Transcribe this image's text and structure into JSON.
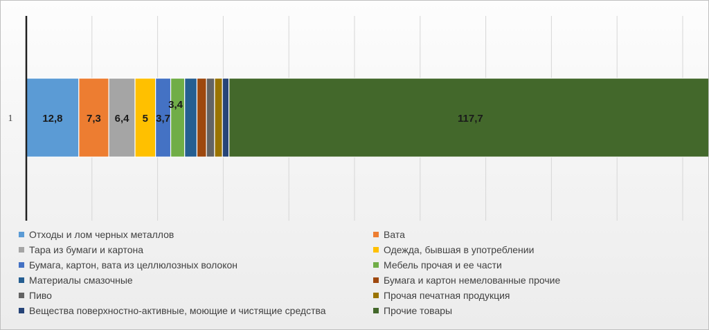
{
  "chart_data": {
    "type": "bar",
    "orientation": "horizontal",
    "stacked": true,
    "categories": [
      "1"
    ],
    "xlim": [
      0,
      160
    ],
    "grid": true,
    "title": "",
    "xlabel": "",
    "ylabel": "",
    "legend_position": "bottom",
    "series": [
      {
        "name": "Отходы и лом черных металлов",
        "values": [
          12.8
        ],
        "label": "12,8",
        "color": "#5b9bd5"
      },
      {
        "name": "Вата",
        "values": [
          7.3
        ],
        "label": "7,3",
        "color": "#ed7d31"
      },
      {
        "name": "Тара из бумаги и картона",
        "values": [
          6.4
        ],
        "label": "6,4",
        "color": "#a5a5a5"
      },
      {
        "name": "Одежда, бывшая в употреблении",
        "values": [
          5
        ],
        "label": "5",
        "color": "#ffc000"
      },
      {
        "name": "Бумага, картон, вата из целлюлозных волокон",
        "values": [
          3.7
        ],
        "label": "3,7",
        "color": "#4472c4"
      },
      {
        "name": "Мебель прочая и ее части",
        "values": [
          3.4
        ],
        "label": "3,4",
        "color": "#70ad47"
      },
      {
        "name": "Материалы смазочные",
        "values": [
          3
        ],
        "label": "",
        "color": "#255e91"
      },
      {
        "name": "Бумага и картон немелованные прочие",
        "values": [
          2.3
        ],
        "label": "",
        "color": "#9e480e"
      },
      {
        "name": "Пиво",
        "values": [
          2
        ],
        "label": "",
        "color": "#636363"
      },
      {
        "name": "Прочая печатная продукция",
        "values": [
          1.9
        ],
        "label": "",
        "color": "#997300"
      },
      {
        "name": "Вещества поверхностно-активные, моющие и чистящие средства",
        "values": [
          1.6
        ],
        "label": "",
        "color": "#264478"
      },
      {
        "name": "Прочие товары",
        "values": [
          117.7
        ],
        "label": "117,7",
        "color": "#43682b"
      }
    ]
  }
}
